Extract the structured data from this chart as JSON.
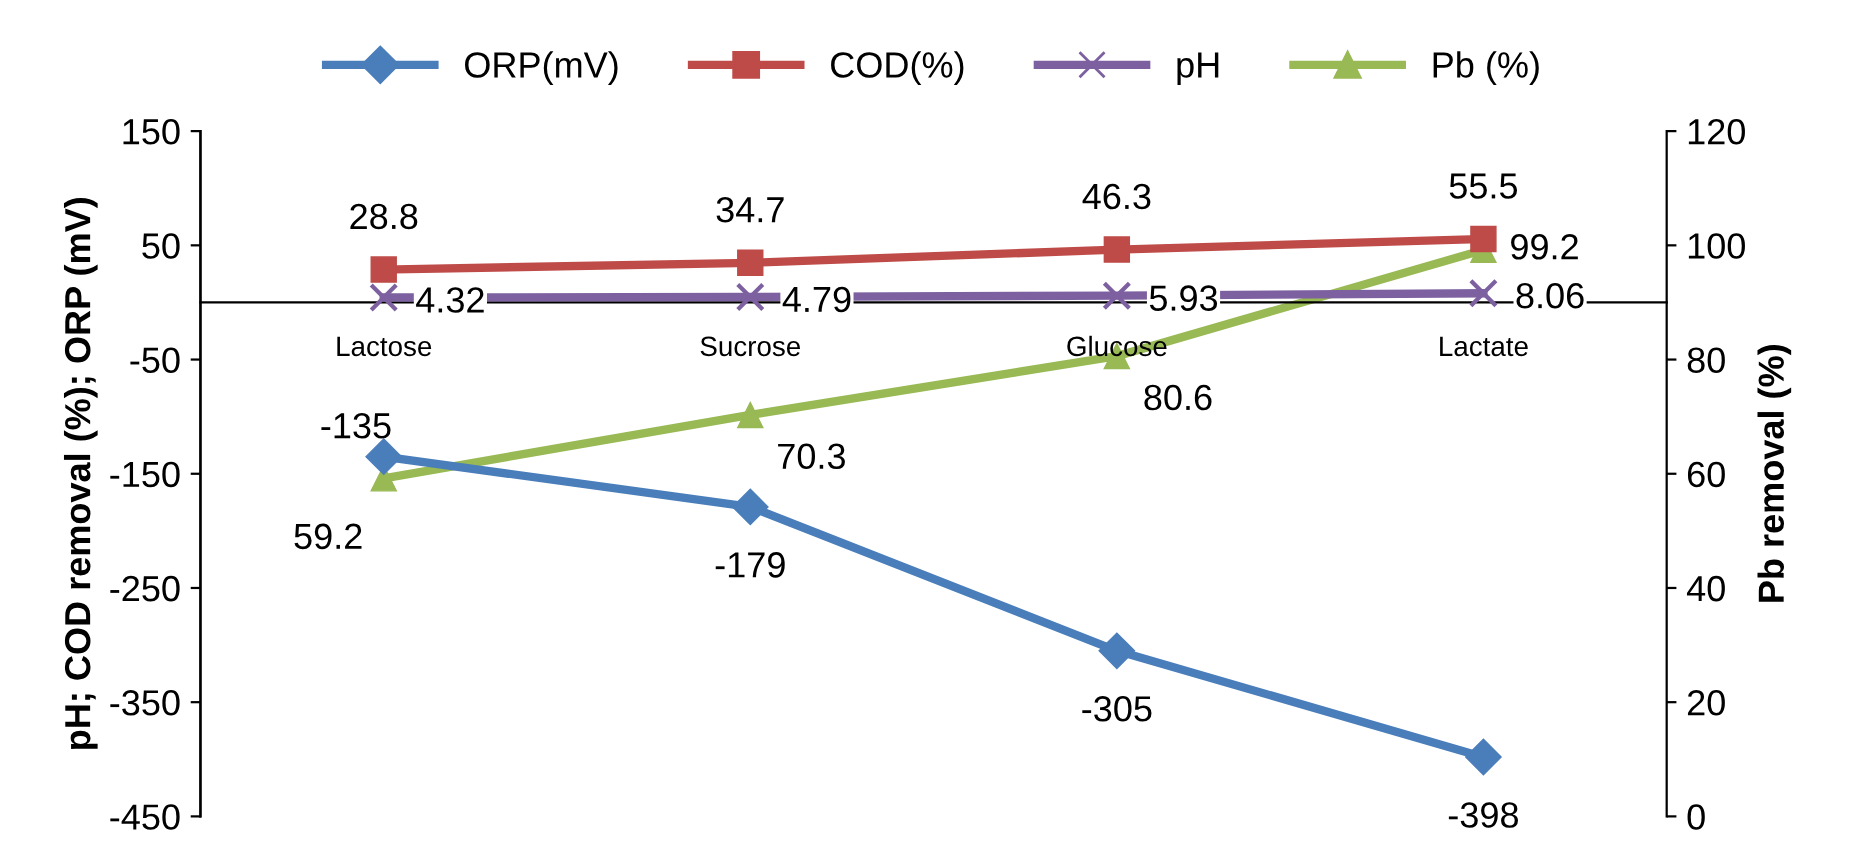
{
  "chart_data": {
    "type": "line",
    "ylabel": "pH; COD removal (%); ORP (mV)",
    "y2label": "Pb removal (%)",
    "categories": [
      "Lactose",
      "Sucrose",
      "Glucose",
      "Lactate"
    ],
    "series": [
      {
        "name": "ORP(mV)",
        "color": "#4a7ebb",
        "marker": "diamond",
        "values": [
          -135,
          -179,
          -305,
          -398
        ]
      },
      {
        "name": "COD(%)",
        "color": "#be4b48",
        "marker": "square",
        "values": [
          28.8,
          34.7,
          46.3,
          55.5
        ]
      },
      {
        "name": "pH",
        "color": "#7d60a0",
        "marker": "cross",
        "values": [
          4.32,
          4.79,
          5.93,
          8.06
        ]
      },
      {
        "name": "Pb (%)",
        "color": "#98b954",
        "marker": "triangle",
        "axis": "y2",
        "values": [
          59.2,
          70.3,
          80.6,
          99.2
        ]
      }
    ],
    "ylim": [
      -450,
      150
    ],
    "yticks": [
      -450,
      -350,
      -250,
      -150,
      -50,
      50,
      150
    ],
    "y2lim": [
      0,
      120
    ],
    "y2ticks": [
      0,
      20,
      40,
      60,
      80,
      100,
      120
    ],
    "data_labels": true,
    "legend": "top",
    "grid": false,
    "line_style": "solid"
  }
}
